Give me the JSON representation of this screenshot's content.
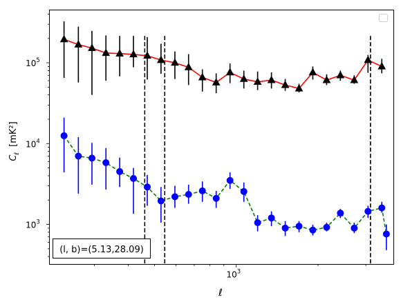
{
  "chart_data": {
    "type": "scatter",
    "title": "",
    "xlabel": "ℓ",
    "ylabel_main": "C",
    "ylabel_sub": "ℓ",
    "ylabel_unit": "[mK²]",
    "xscale": "log",
    "yscale": "log",
    "xlim": [
      205,
      3800
    ],
    "ylim": [
      320,
      450000
    ],
    "x_tick_labels": [
      {
        "value": 1000,
        "base": "10",
        "exp": "3"
      }
    ],
    "y_tick_labels": [
      {
        "value": 1000,
        "base": "10",
        "exp": "3"
      },
      {
        "value": 10000,
        "base": "10",
        "exp": "4"
      },
      {
        "value": 100000,
        "base": "10",
        "exp": "5"
      }
    ],
    "vertical_lines": [
      460,
      545,
      3120
    ],
    "annotation": "(l, b)=(5.13,28.09)",
    "legend": {
      "placement": "upper-right",
      "entries": []
    },
    "series": [
      {
        "marker": "triangle",
        "color": "#000000",
        "line_color": "#ff0000",
        "line_style": "solid",
        "errorbar_color": "#000000",
        "x": [
          232,
          262,
          294,
          331,
          372,
          418,
          470,
          528,
          594,
          667,
          750,
          843,
          948,
          1066,
          1198,
          1347,
          1514,
          1702,
          1913,
          2151,
          2417,
          2718,
          3055,
          3434
        ],
        "y": [
          195000,
          168000,
          152000,
          132000,
          130000,
          127000,
          122000,
          108000,
          100000,
          88000,
          66000,
          57000,
          76000,
          63000,
          58000,
          61000,
          53000,
          48000,
          76000,
          61000,
          70000,
          61000,
          108000,
          90000
        ],
        "yerr_low": [
          65000,
          57000,
          40000,
          60000,
          68000,
          88000,
          62000,
          73000,
          63000,
          53000,
          44000,
          42000,
          56000,
          48000,
          46000,
          48000,
          45000,
          43000,
          62000,
          53000,
          60000,
          55000,
          75000,
          74000
        ],
        "yerr_high": [
          325000,
          280000,
          248000,
          218000,
          215000,
          215000,
          208000,
          172000,
          138000,
          128000,
          83000,
          74000,
          98000,
          80000,
          78000,
          76000,
          63000,
          55000,
          90000,
          72000,
          80000,
          70000,
          125000,
          112000
        ]
      },
      {
        "marker": "circle",
        "color": "#0000ff",
        "line_color": "#008000",
        "line_style": "dashed",
        "errorbar_color": "#0000ff",
        "x": [
          232,
          262,
          294,
          331,
          372,
          418,
          470,
          528,
          594,
          667,
          750,
          843,
          948,
          1066,
          1198,
          1347,
          1514,
          1702,
          1913,
          2151,
          2417,
          2718,
          3055,
          3434,
          3570
        ],
        "y": [
          12500,
          7000,
          6600,
          5800,
          4500,
          3700,
          2900,
          1950,
          2200,
          2350,
          2600,
          2100,
          3500,
          2550,
          1050,
          1200,
          900,
          950,
          850,
          920,
          1380,
          900,
          1450,
          1600,
          760
        ],
        "yerr_low": [
          4400,
          2400,
          3100,
          2700,
          2900,
          1350,
          1700,
          1050,
          1600,
          1800,
          1900,
          1600,
          2750,
          1900,
          820,
          950,
          720,
          800,
          730,
          820,
          1200,
          780,
          1200,
          1400,
          480
        ],
        "yerr_high": [
          21000,
          12000,
          10200,
          8800,
          6700,
          5000,
          4100,
          2900,
          3000,
          3100,
          3400,
          2600,
          4400,
          3300,
          1300,
          1450,
          1100,
          1100,
          990,
          1050,
          1550,
          1050,
          1700,
          1900,
          1000
        ]
      }
    ]
  }
}
